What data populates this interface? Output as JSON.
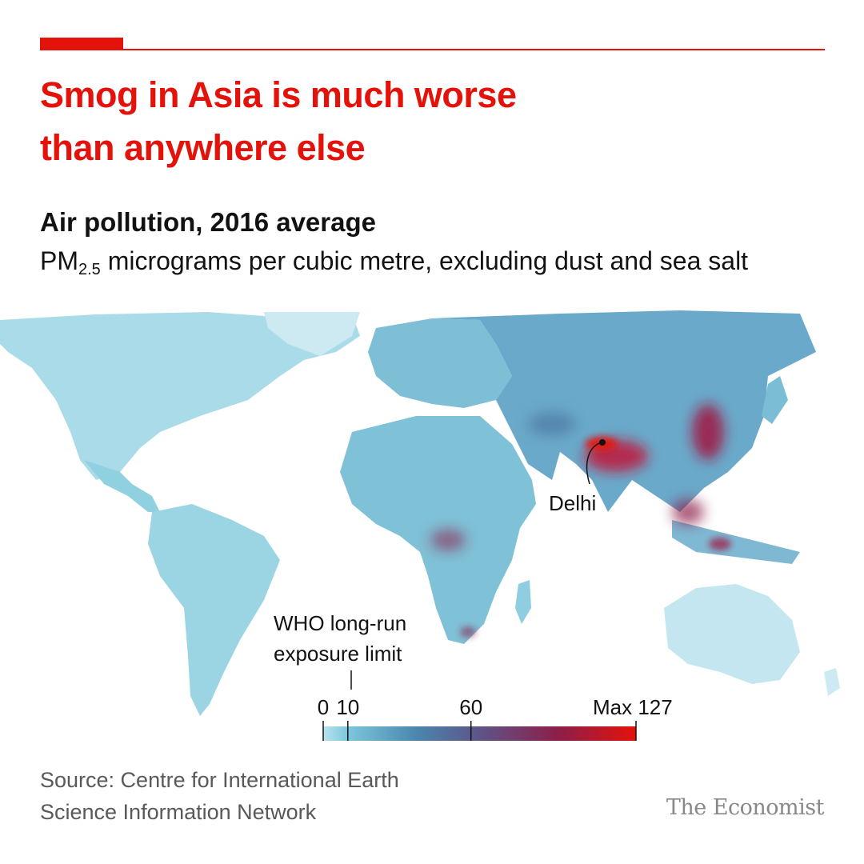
{
  "title_lines": [
    "Smog in Asia is much worse",
    "than anywhere else"
  ],
  "subtitle": "Air pollution, 2016 average",
  "unit": {
    "prefix": "PM",
    "subscript": "2.5",
    "rest": " micrograms per cubic metre, excluding dust and sea salt"
  },
  "map": {
    "annotations": {
      "delhi": "Delhi",
      "who_limit_lines": [
        "WHO long-run",
        "exposure limit"
      ]
    },
    "legend": {
      "ticks": [
        "0",
        "10",
        "60",
        "Max 127"
      ],
      "tick_values": [
        0,
        10,
        60,
        127
      ],
      "min": 0,
      "max": 127,
      "colors": [
        "#b9e3ee",
        "#56b2cc",
        "#4a86ae",
        "#5e5488",
        "#8c1f4a",
        "#e3120b"
      ]
    }
  },
  "source_lines": [
    "Source: Centre for International Earth",
    "Science Information Network"
  ],
  "brand": "The Economist"
}
